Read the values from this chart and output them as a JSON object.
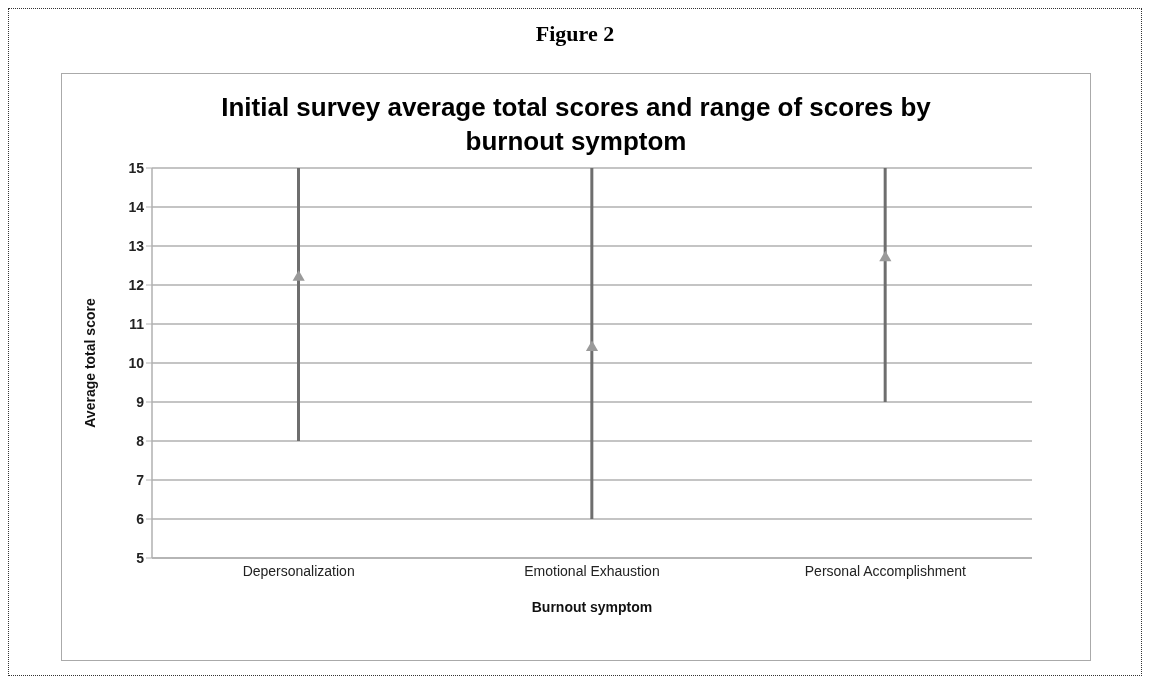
{
  "chart_data": {
    "type": "bar",
    "title": "Initial survey average total scores and range of scores by burnout symptom",
    "xlabel": "Burnout symptom",
    "ylabel": "Average total score",
    "annotations": [
      "Figure 2"
    ],
    "categories": [
      "Depersonalization",
      "Emotional Exhaustion",
      "Personal Accomplishment"
    ],
    "series": [
      {
        "color": "#6e6e6e",
        "values": [
          7,
          9,
          6
        ],
        "base": [
          8,
          6,
          9
        ]
      },
      {
        "type": "scatter",
        "color": "#9a9a9a",
        "x": [
          "Depersonalization",
          "Emotional Exhaustion",
          "Personal Accomplishment"
        ],
        "values": [
          12.2,
          10.4,
          12.7
        ]
      }
    ],
    "marker": "triangle",
    "ylim": [
      5,
      15
    ],
    "yticks": [
      5,
      6,
      7,
      8,
      9,
      10,
      11,
      12,
      13,
      14,
      15
    ],
    "grid": "y"
  }
}
